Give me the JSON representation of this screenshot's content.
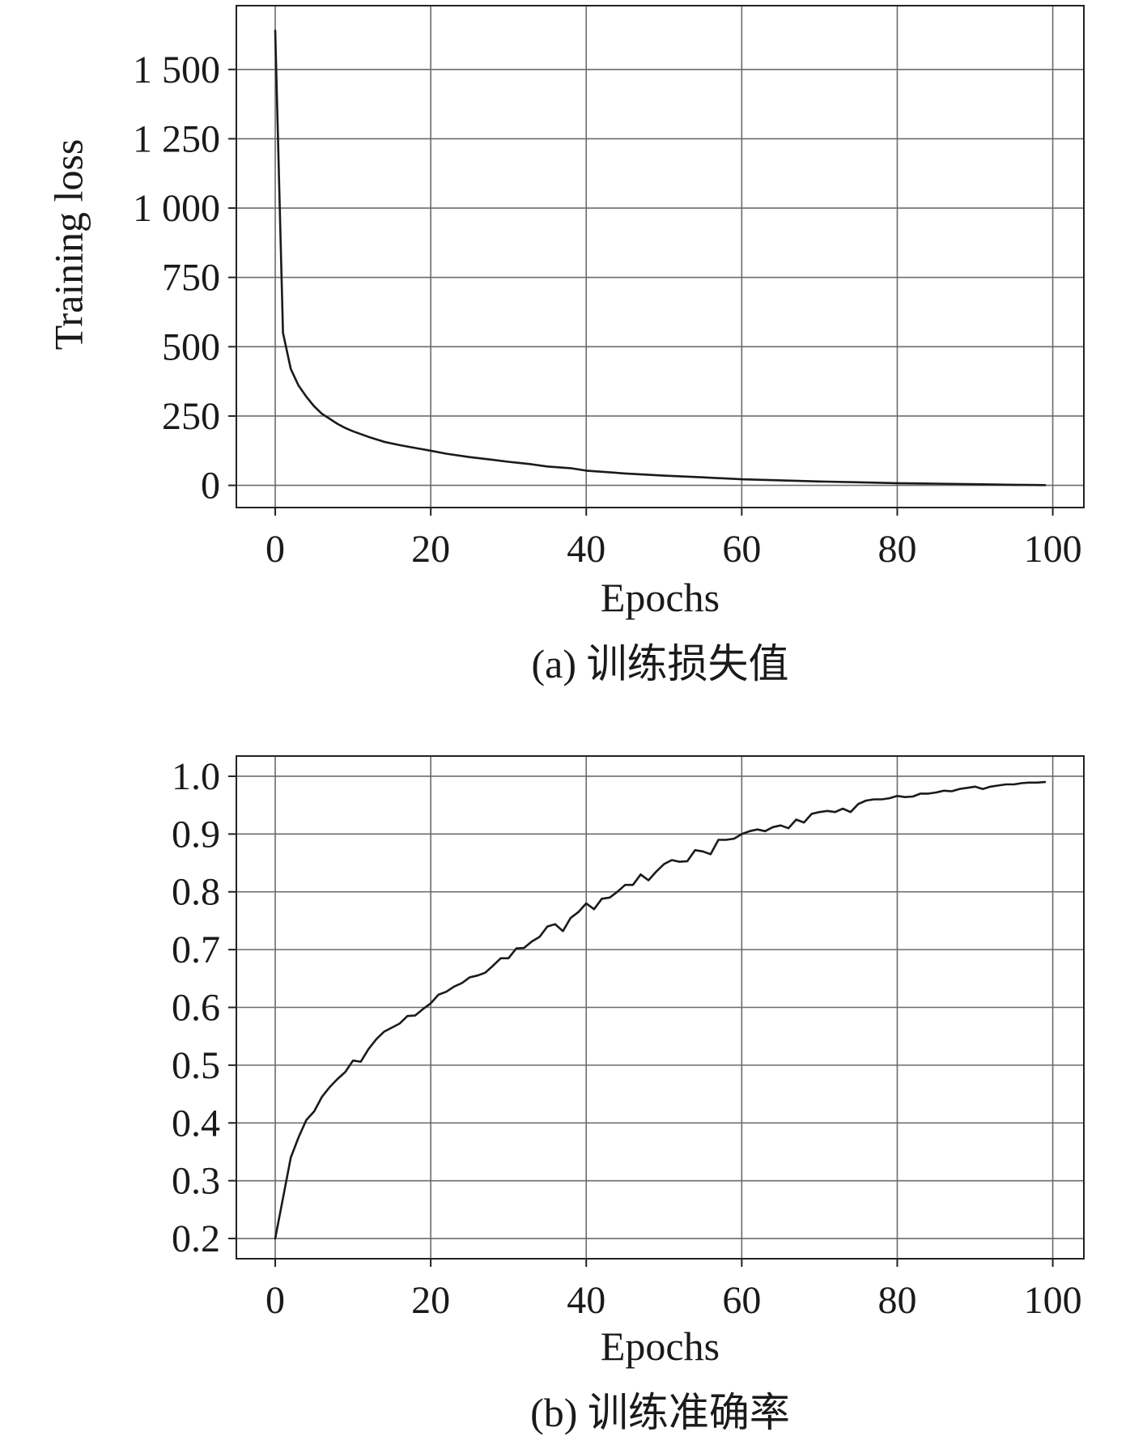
{
  "chart_data": [
    {
      "type": "line",
      "panel": "a",
      "title": "",
      "xlabel": "Epochs",
      "ylabel": "Training loss",
      "caption": "(a) 训练损失值",
      "xlim": [
        -5,
        104
      ],
      "ylim": [
        -80,
        1730
      ],
      "xticks": [
        0,
        20,
        40,
        60,
        80,
        100
      ],
      "xtick_labels": [
        "0",
        "20",
        "40",
        "60",
        "80",
        "100"
      ],
      "yticks": [
        0,
        250,
        500,
        750,
        1000,
        1250,
        1500
      ],
      "ytick_labels": [
        "0",
        "250",
        "500",
        "750",
        "1 000",
        "1 250",
        "1 500"
      ],
      "grid": true,
      "legend": "none",
      "series": [
        {
          "x": [
            0,
            1,
            2,
            3,
            4,
            5,
            6,
            7,
            8,
            9,
            10,
            12,
            14,
            16,
            18,
            20,
            22,
            25,
            28,
            30,
            33,
            35,
            38,
            40,
            45,
            50,
            55,
            60,
            65,
            70,
            75,
            80,
            85,
            90,
            95,
            99
          ],
          "y": [
            1640,
            550,
            420,
            360,
            320,
            285,
            258,
            240,
            222,
            207,
            195,
            175,
            157,
            145,
            135,
            125,
            114,
            102,
            92,
            85,
            76,
            68,
            62,
            53,
            43,
            35,
            29,
            22,
            18,
            14,
            11,
            8,
            6,
            4,
            2,
            1
          ]
        }
      ]
    },
    {
      "type": "line",
      "panel": "b",
      "title": "",
      "xlabel": "Epochs",
      "ylabel": "",
      "caption": "(b) 训练准确率",
      "xlim": [
        -5,
        104
      ],
      "ylim": [
        0.165,
        1.035
      ],
      "xticks": [
        0,
        20,
        40,
        60,
        80,
        100
      ],
      "xtick_labels": [
        "0",
        "20",
        "40",
        "60",
        "80",
        "100"
      ],
      "yticks": [
        0.2,
        0.3,
        0.4,
        0.5,
        0.6,
        0.7,
        0.8,
        0.9,
        1.0
      ],
      "ytick_labels": [
        "0.2",
        "0.3",
        "0.4",
        "0.5",
        "0.6",
        "0.7",
        "0.8",
        "0.9",
        "1.0"
      ],
      "grid": true,
      "legend": "none",
      "series": [
        {
          "x": [
            0,
            1,
            2,
            3,
            4,
            5,
            6,
            7,
            8,
            9,
            10,
            11,
            12,
            13,
            14,
            15,
            16,
            17,
            18,
            19,
            20,
            21,
            22,
            23,
            24,
            25,
            26,
            27,
            28,
            29,
            30,
            31,
            32,
            33,
            34,
            35,
            36,
            37,
            38,
            39,
            40,
            41,
            42,
            43,
            44,
            45,
            46,
            47,
            48,
            49,
            50,
            51,
            52,
            53,
            54,
            55,
            56,
            57,
            58,
            59,
            60,
            61,
            62,
            63,
            64,
            65,
            66,
            67,
            68,
            69,
            70,
            71,
            72,
            73,
            74,
            75,
            76,
            77,
            78,
            79,
            80,
            81,
            82,
            83,
            84,
            85,
            86,
            87,
            88,
            89,
            90,
            91,
            92,
            93,
            94,
            95,
            96,
            97,
            98,
            99
          ],
          "y": [
            0.2,
            0.27,
            0.34,
            0.375,
            0.405,
            0.42,
            0.445,
            0.462,
            0.476,
            0.488,
            0.508,
            0.506,
            0.528,
            0.545,
            0.558,
            0.565,
            0.572,
            0.585,
            0.586,
            0.597,
            0.607,
            0.622,
            0.627,
            0.636,
            0.642,
            0.652,
            0.655,
            0.66,
            0.672,
            0.685,
            0.685,
            0.702,
            0.703,
            0.714,
            0.722,
            0.74,
            0.744,
            0.732,
            0.755,
            0.765,
            0.78,
            0.77,
            0.788,
            0.79,
            0.8,
            0.812,
            0.812,
            0.83,
            0.82,
            0.835,
            0.848,
            0.855,
            0.852,
            0.853,
            0.872,
            0.87,
            0.865,
            0.89,
            0.89,
            0.892,
            0.9,
            0.905,
            0.908,
            0.905,
            0.912,
            0.915,
            0.91,
            0.925,
            0.92,
            0.935,
            0.938,
            0.94,
            0.938,
            0.944,
            0.938,
            0.952,
            0.958,
            0.96,
            0.96,
            0.962,
            0.966,
            0.964,
            0.965,
            0.97,
            0.97,
            0.972,
            0.975,
            0.974,
            0.978,
            0.98,
            0.982,
            0.978,
            0.982,
            0.984,
            0.986,
            0.986,
            0.988,
            0.989,
            0.989,
            0.99
          ]
        }
      ]
    }
  ]
}
